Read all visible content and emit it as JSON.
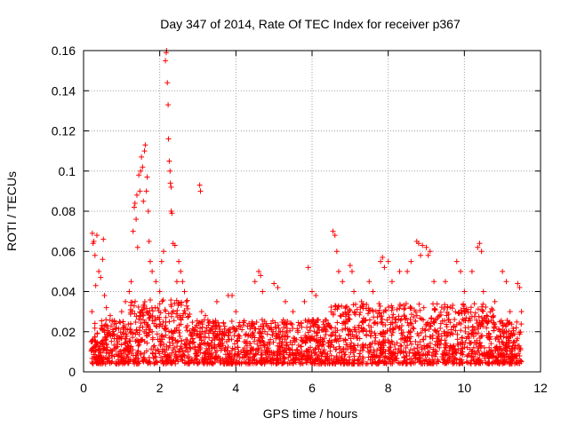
{
  "chart_data": {
    "type": "scatter",
    "title": "Day 347 of 2014, Rate Of TEC Index for receiver p367",
    "xlabel": "GPS time / hours",
    "ylabel": "ROTI / TECUs",
    "xlim": [
      0,
      12
    ],
    "ylim": [
      0,
      0.16
    ],
    "x_ticks": [
      0,
      2,
      4,
      6,
      8,
      10,
      12
    ],
    "x_tick_labels": [
      "0",
      "2",
      "4",
      "6",
      "8",
      "10",
      "12"
    ],
    "y_ticks": [
      0,
      0.02,
      0.04,
      0.06,
      0.08,
      0.1,
      0.12,
      0.14,
      0.16
    ],
    "y_tick_labels": [
      "0",
      "0.02",
      "0.04",
      "0.06",
      "0.08",
      "0.1",
      "0.12",
      "0.14",
      "0.16"
    ],
    "grid": true,
    "marker": "+",
    "color": "#ff0000",
    "x_range_of_data": [
      0.2,
      11.5
    ],
    "series": [
      {
        "name": "ROTI",
        "points": [
          [
            0.2,
            0.015
          ],
          [
            0.22,
            0.03
          ],
          [
            0.23,
            0.069
          ],
          [
            0.25,
            0.064
          ],
          [
            0.27,
            0.065
          ],
          [
            0.3,
            0.058
          ],
          [
            0.32,
            0.043
          ],
          [
            0.35,
            0.068
          ],
          [
            0.4,
            0.05
          ],
          [
            0.45,
            0.047
          ],
          [
            0.5,
            0.056
          ],
          [
            0.52,
            0.066
          ],
          [
            0.55,
            0.038
          ],
          [
            0.6,
            0.032
          ],
          [
            0.7,
            0.028
          ],
          [
            0.8,
            0.025
          ],
          [
            1.0,
            0.03
          ],
          [
            1.1,
            0.035
          ],
          [
            1.2,
            0.04
          ],
          [
            1.25,
            0.045
          ],
          [
            1.3,
            0.07
          ],
          [
            1.33,
            0.082
          ],
          [
            1.35,
            0.084
          ],
          [
            1.38,
            0.076
          ],
          [
            1.4,
            0.088
          ],
          [
            1.42,
            0.062
          ],
          [
            1.45,
            0.098
          ],
          [
            1.48,
            0.09
          ],
          [
            1.5,
            0.1
          ],
          [
            1.52,
            0.107
          ],
          [
            1.55,
            0.102
          ],
          [
            1.57,
            0.085
          ],
          [
            1.6,
            0.11
          ],
          [
            1.62,
            0.113
          ],
          [
            1.65,
            0.09
          ],
          [
            1.67,
            0.097
          ],
          [
            1.7,
            0.08
          ],
          [
            1.72,
            0.065
          ],
          [
            1.75,
            0.055
          ],
          [
            1.8,
            0.05
          ],
          [
            1.9,
            0.045
          ],
          [
            2.0,
            0.04
          ],
          [
            2.05,
            0.055
          ],
          [
            2.1,
            0.06
          ],
          [
            2.15,
            0.155
          ],
          [
            2.17,
            0.159
          ],
          [
            2.18,
            0.16
          ],
          [
            2.2,
            0.144
          ],
          [
            2.22,
            0.133
          ],
          [
            2.23,
            0.116
          ],
          [
            2.25,
            0.105
          ],
          [
            2.27,
            0.1
          ],
          [
            2.28,
            0.094
          ],
          [
            2.3,
            0.092
          ],
          [
            2.3,
            0.08
          ],
          [
            2.32,
            0.079
          ],
          [
            2.35,
            0.064
          ],
          [
            2.4,
            0.063
          ],
          [
            2.45,
            0.045
          ],
          [
            2.5,
            0.055
          ],
          [
            2.55,
            0.05
          ],
          [
            2.6,
            0.045
          ],
          [
            2.65,
            0.04
          ],
          [
            2.7,
            0.035
          ],
          [
            3.05,
            0.093
          ],
          [
            3.07,
            0.09
          ],
          [
            3.1,
            0.03
          ],
          [
            3.2,
            0.028
          ],
          [
            3.5,
            0.035
          ],
          [
            3.8,
            0.038
          ],
          [
            3.9,
            0.038
          ],
          [
            4.0,
            0.03
          ],
          [
            4.5,
            0.045
          ],
          [
            4.6,
            0.05
          ],
          [
            4.65,
            0.048
          ],
          [
            4.7,
            0.04
          ],
          [
            5.0,
            0.044
          ],
          [
            5.1,
            0.042
          ],
          [
            5.3,
            0.035
          ],
          [
            5.5,
            0.03
          ],
          [
            5.8,
            0.035
          ],
          [
            5.9,
            0.052
          ],
          [
            6.0,
            0.04
          ],
          [
            6.1,
            0.038
          ],
          [
            6.5,
            0.03
          ],
          [
            6.55,
            0.07
          ],
          [
            6.6,
            0.068
          ],
          [
            6.65,
            0.06
          ],
          [
            6.7,
            0.05
          ],
          [
            6.8,
            0.045
          ],
          [
            7.0,
            0.053
          ],
          [
            7.05,
            0.05
          ],
          [
            7.1,
            0.04
          ],
          [
            7.3,
            0.035
          ],
          [
            7.5,
            0.045
          ],
          [
            7.6,
            0.04
          ],
          [
            7.8,
            0.055
          ],
          [
            7.85,
            0.057
          ],
          [
            7.9,
            0.052
          ],
          [
            8.0,
            0.055
          ],
          [
            8.1,
            0.045
          ],
          [
            8.3,
            0.05
          ],
          [
            8.5,
            0.05
          ],
          [
            8.6,
            0.055
          ],
          [
            8.75,
            0.065
          ],
          [
            8.8,
            0.064
          ],
          [
            8.85,
            0.058
          ],
          [
            8.9,
            0.063
          ],
          [
            9.0,
            0.062
          ],
          [
            9.05,
            0.058
          ],
          [
            9.1,
            0.06
          ],
          [
            9.2,
            0.045
          ],
          [
            9.5,
            0.045
          ],
          [
            9.8,
            0.055
          ],
          [
            9.9,
            0.05
          ],
          [
            10.0,
            0.04
          ],
          [
            10.2,
            0.05
          ],
          [
            10.35,
            0.062
          ],
          [
            10.4,
            0.064
          ],
          [
            10.45,
            0.06
          ],
          [
            10.5,
            0.04
          ],
          [
            10.8,
            0.035
          ],
          [
            11.0,
            0.05
          ],
          [
            11.1,
            0.045
          ],
          [
            11.2,
            0.03
          ],
          [
            11.4,
            0.044
          ],
          [
            11.45,
            0.042
          ],
          [
            11.5,
            0.03
          ]
        ]
      }
    ]
  }
}
